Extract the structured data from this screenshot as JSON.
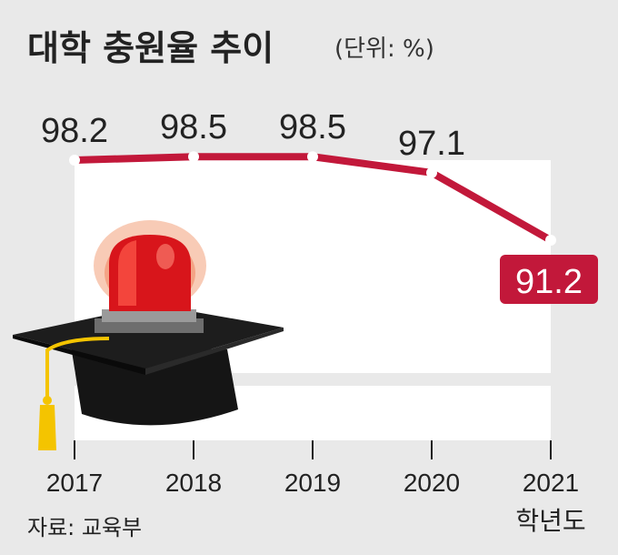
{
  "title": "대학 충원율 추이",
  "unit": "(단위: %)",
  "source": "자료: 교육부",
  "colors": {
    "line": "#c2183a",
    "background": "#e9e9e9",
    "plot_area": "#ffffff",
    "text": "#222222"
  },
  "icons": [
    "graduation-cap-icon",
    "siren-light-icon"
  ],
  "chart_data": {
    "type": "line",
    "title": "대학 충원율 추이",
    "x": [
      "2017",
      "2018",
      "2019",
      "2020",
      "2021"
    ],
    "xlabel": "학년도",
    "ylabel": "",
    "series": [
      {
        "values": [
          98.2,
          98.5,
          98.5,
          97.1,
          91.2
        ]
      }
    ],
    "data_labels": [
      "98.2",
      "98.5",
      "98.5",
      "97.1",
      "91.2"
    ],
    "highlighted_label": "91.2",
    "ylim": [
      85,
      99
    ],
    "grid": false
  }
}
